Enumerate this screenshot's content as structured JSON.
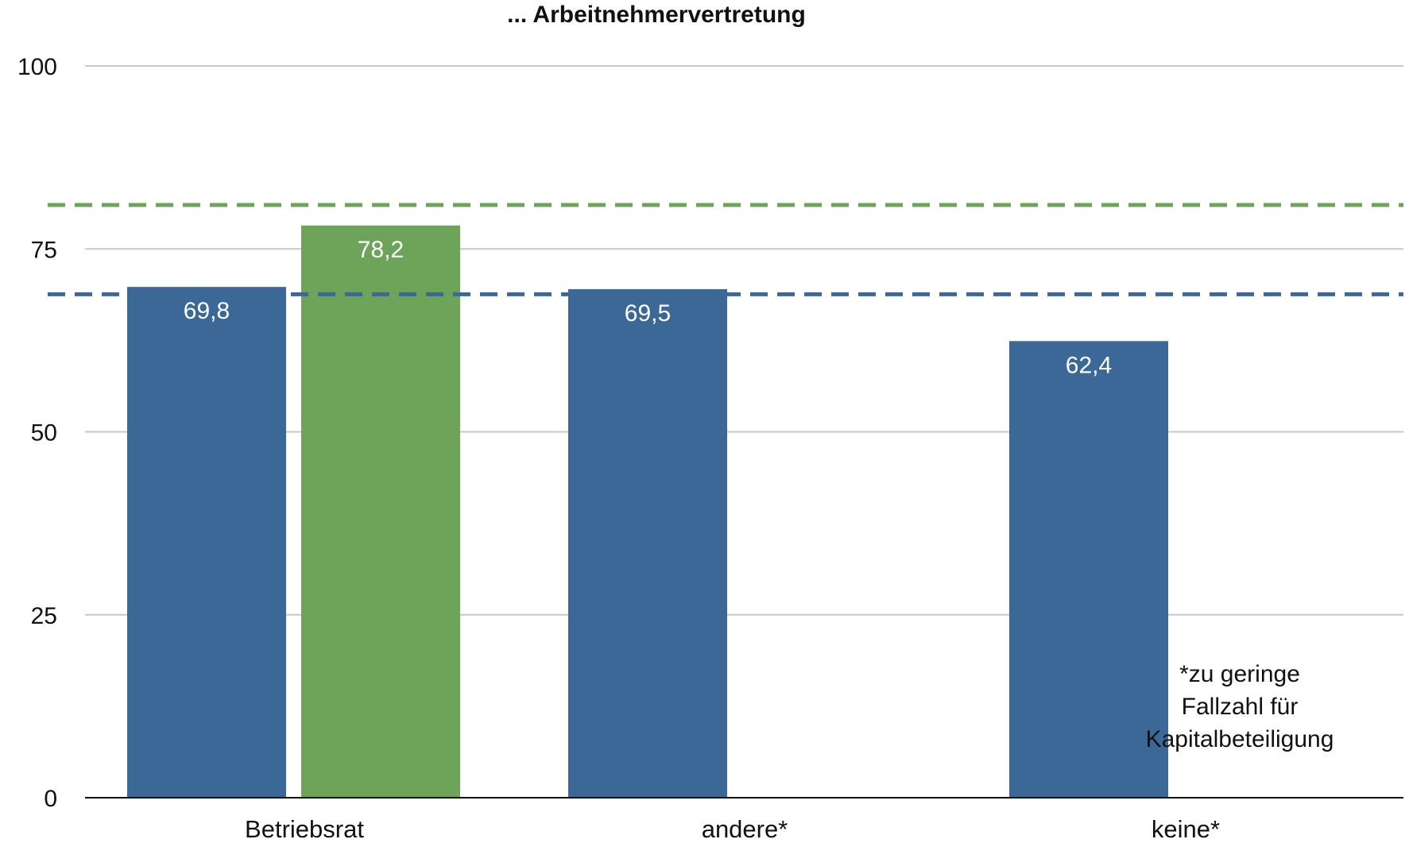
{
  "chart_data": {
    "type": "bar",
    "title": "... Arbeitnehmervertretung",
    "categories": [
      "Betriebsrat",
      "andere*",
      "keine*"
    ],
    "series": [
      {
        "color": "#3b6897",
        "values": [
          69.8,
          69.5,
          62.4
        ],
        "value_labels": [
          "69,8",
          "69,5",
          "62,4"
        ]
      },
      {
        "color": "#6ea35a",
        "values": [
          78.2,
          null,
          null
        ],
        "value_labels": [
          "78,2",
          "",
          ""
        ]
      }
    ],
    "reference_lines": [
      {
        "value": 81.0,
        "color": "#6ea35a",
        "style": "dashed"
      },
      {
        "value": 68.8,
        "color": "#3b6897",
        "style": "dashed"
      }
    ],
    "ylim": [
      0,
      100
    ],
    "yticks": [
      0,
      25,
      50,
      75,
      100
    ],
    "grid": true,
    "xlabel": "",
    "ylabel": "",
    "annotation": [
      "*zu geringe",
      "Fallzahl für",
      "Kapitalbeteiligung"
    ]
  }
}
